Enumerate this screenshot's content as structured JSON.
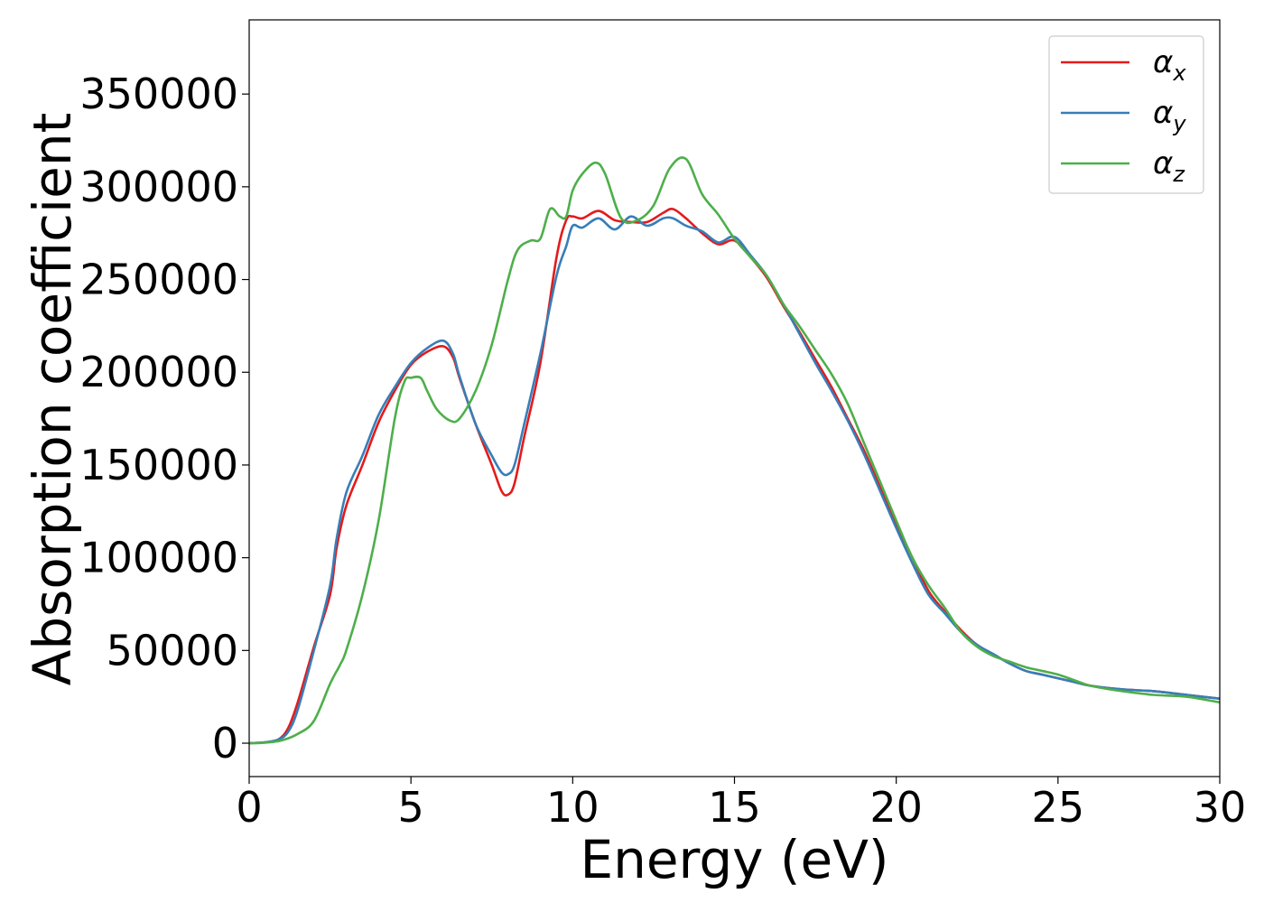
{
  "chart_data": {
    "type": "line",
    "title": "",
    "xlabel": "Energy (eV)",
    "ylabel": "Absorption coefficient",
    "xlim": [
      0,
      30
    ],
    "ylim": [
      -18000,
      390000
    ],
    "xticks": [
      0,
      5,
      10,
      15,
      20,
      25,
      30
    ],
    "yticks": [
      0,
      50000,
      100000,
      150000,
      200000,
      250000,
      300000,
      350000
    ],
    "grid": false,
    "legend_position": "top-right",
    "series": [
      {
        "name": "αx",
        "symbol": "α",
        "subscript": "x",
        "color": "#e41a1c",
        "x": [
          0,
          0.5,
          0.9,
          1.2,
          1.5,
          2.0,
          2.5,
          2.7,
          3.0,
          3.5,
          4.0,
          4.5,
          5.0,
          5.5,
          6.0,
          6.3,
          6.5,
          7.0,
          7.5,
          7.8,
          8.0,
          8.2,
          8.5,
          9.0,
          9.5,
          9.8,
          10.0,
          10.3,
          10.8,
          11.3,
          11.8,
          12.3,
          12.8,
          13.1,
          13.5,
          14.0,
          14.5,
          15.0,
          15.5,
          16.0,
          16.5,
          17.0,
          17.5,
          18.0,
          18.5,
          19.0,
          19.5,
          20.0,
          20.5,
          21.0,
          21.5,
          22.0,
          22.5,
          23.0,
          23.5,
          24.0,
          24.5,
          25.0,
          25.5,
          26.0,
          27.0,
          28.0,
          29.0,
          30.0
        ],
        "values": [
          0,
          500,
          2000,
          8000,
          22000,
          52000,
          80000,
          105000,
          128000,
          150000,
          173000,
          190000,
          204000,
          211000,
          214000,
          208000,
          197000,
          172000,
          150000,
          136000,
          134000,
          140000,
          165000,
          205000,
          262000,
          282000,
          284000,
          283000,
          287000,
          282000,
          281000,
          281000,
          286000,
          288000,
          283000,
          275000,
          269000,
          271000,
          262000,
          251000,
          236000,
          222000,
          207000,
          192000,
          175000,
          158000,
          138000,
          118000,
          100000,
          82000,
          71000,
          61000,
          53000,
          48000,
          43000,
          39000,
          37000,
          35000,
          33000,
          31000,
          29000,
          28000,
          26000,
          24000
        ]
      },
      {
        "name": "αy",
        "symbol": "α",
        "subscript": "y",
        "color": "#377eb8",
        "x": [
          0,
          0.5,
          0.9,
          1.2,
          1.5,
          2.0,
          2.5,
          2.7,
          3.0,
          3.5,
          4.0,
          4.5,
          5.0,
          5.5,
          6.0,
          6.3,
          6.5,
          7.0,
          7.5,
          7.8,
          8.0,
          8.2,
          8.5,
          9.0,
          9.5,
          9.8,
          10.0,
          10.3,
          10.8,
          11.3,
          11.8,
          12.3,
          12.8,
          13.1,
          13.5,
          14.0,
          14.5,
          15.0,
          15.5,
          16.0,
          16.5,
          17.0,
          17.5,
          18.0,
          18.5,
          19.0,
          19.5,
          20.0,
          20.5,
          21.0,
          21.5,
          22.0,
          22.5,
          23.0,
          23.5,
          24.0,
          24.5,
          25.0,
          25.5,
          26.0,
          27.0,
          28.0,
          29.0,
          30.0
        ],
        "values": [
          0,
          500,
          2000,
          6000,
          18000,
          50000,
          85000,
          110000,
          135000,
          155000,
          177000,
          192000,
          205000,
          213000,
          217000,
          210000,
          198000,
          172000,
          155000,
          146000,
          145000,
          150000,
          172000,
          210000,
          252000,
          268000,
          279000,
          278000,
          283000,
          277000,
          284000,
          279000,
          283000,
          283000,
          279000,
          276000,
          270000,
          273000,
          263000,
          252000,
          237000,
          221000,
          205000,
          190000,
          174000,
          156000,
          136000,
          116000,
          97000,
          80000,
          70000,
          60000,
          53000,
          48000,
          43000,
          39000,
          37000,
          35000,
          33000,
          31000,
          29000,
          28000,
          26000,
          24000
        ]
      },
      {
        "name": "αz",
        "symbol": "α",
        "subscript": "z",
        "color": "#4daf4a",
        "x": [
          0,
          0.5,
          1.0,
          1.5,
          2.0,
          2.5,
          2.8,
          3.0,
          3.5,
          4.0,
          4.5,
          4.8,
          5.0,
          5.3,
          5.5,
          5.8,
          6.2,
          6.5,
          7.0,
          7.5,
          8.0,
          8.3,
          8.7,
          9.0,
          9.3,
          9.6,
          9.8,
          10.0,
          10.3,
          10.7,
          11.0,
          11.5,
          12.0,
          12.5,
          13.0,
          13.5,
          14.0,
          14.5,
          15.0,
          15.5,
          16.0,
          16.5,
          17.0,
          17.5,
          18.0,
          18.5,
          19.0,
          19.5,
          20.0,
          20.5,
          21.0,
          21.5,
          22.0,
          22.5,
          23.0,
          23.5,
          24.0,
          24.5,
          25.0,
          25.5,
          26.0,
          27.0,
          28.0,
          29.0,
          30.0
        ],
        "values": [
          0,
          300,
          1500,
          5000,
          12000,
          32000,
          42000,
          50000,
          80000,
          120000,
          175000,
          195000,
          197000,
          197000,
          190000,
          180000,
          174000,
          175000,
          190000,
          215000,
          250000,
          266000,
          271000,
          272000,
          288000,
          284000,
          284000,
          298000,
          307000,
          313000,
          307000,
          283000,
          282000,
          290000,
          310000,
          315000,
          296000,
          285000,
          272000,
          262000,
          252000,
          237000,
          225000,
          212000,
          199000,
          183000,
          162000,
          141000,
          120000,
          100000,
          85000,
          73000,
          60000,
          52000,
          47000,
          44000,
          41000,
          39000,
          37000,
          34000,
          31000,
          28000,
          26000,
          25000,
          22000
        ]
      }
    ]
  }
}
